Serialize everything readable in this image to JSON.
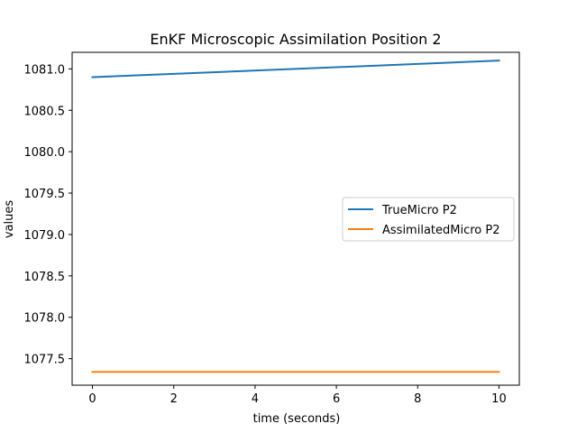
{
  "chart_data": {
    "type": "line",
    "title": "EnKF Microscopic Assimilation Position 2",
    "xlabel": "time (seconds)",
    "ylabel": "values",
    "xlim": [
      -0.5,
      10.5
    ],
    "ylim": [
      1077.18,
      1081.2
    ],
    "xticks": [
      0,
      2,
      4,
      6,
      8,
      10
    ],
    "xtick_labels": [
      "0",
      "2",
      "4",
      "6",
      "8",
      "10"
    ],
    "yticks": [
      1077.5,
      1078.0,
      1078.5,
      1079.0,
      1079.5,
      1080.0,
      1080.5,
      1081.0
    ],
    "ytick_labels": [
      "1077.5",
      "1078.0",
      "1078.5",
      "1079.0",
      "1079.5",
      "1080.0",
      "1080.5",
      "1081.0"
    ],
    "legend_position": "center-right",
    "series": [
      {
        "name": "TrueMicro P2",
        "color": "#1f77b4",
        "x": [
          0,
          10
        ],
        "values": [
          1080.9,
          1081.1
        ]
      },
      {
        "name": "AssimilatedMicro P2",
        "color": "#ff7f0e",
        "x": [
          0,
          10
        ],
        "values": [
          1077.34,
          1077.34
        ]
      }
    ]
  }
}
